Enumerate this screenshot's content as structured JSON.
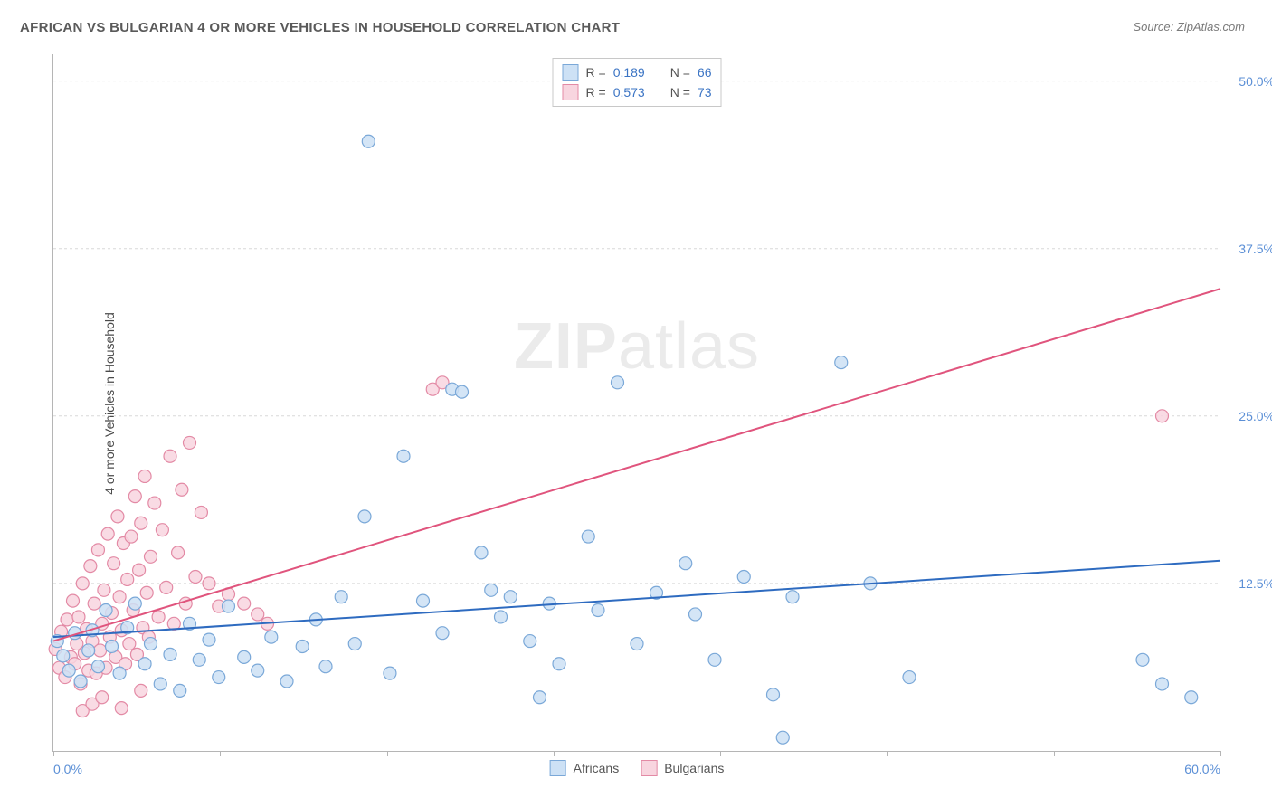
{
  "title": "AFRICAN VS BULGARIAN 4 OR MORE VEHICLES IN HOUSEHOLD CORRELATION CHART",
  "source": "Source: ZipAtlas.com",
  "y_axis_label": "4 or more Vehicles in Household",
  "watermark": {
    "bold": "ZIP",
    "rest": "atlas"
  },
  "chart": {
    "type": "scatter",
    "xlim": [
      0,
      60
    ],
    "ylim": [
      0,
      52
    ],
    "x_ticks_minor": [
      0,
      8.57,
      17.14,
      25.71,
      34.28,
      42.85,
      51.42,
      60
    ],
    "x_tick_labels": [
      {
        "value": 0,
        "label": "0.0%",
        "align": "left"
      },
      {
        "value": 60,
        "label": "60.0%",
        "align": "right"
      }
    ],
    "y_tick_labels": [
      {
        "value": 12.5,
        "label": "12.5%"
      },
      {
        "value": 25.0,
        "label": "25.0%"
      },
      {
        "value": 37.5,
        "label": "37.5%"
      },
      {
        "value": 50.0,
        "label": "50.0%"
      }
    ],
    "grid_color": "#d8d8d8",
    "background_color": "#ffffff",
    "marker_radius": 7,
    "marker_stroke_width": 1.2,
    "series": {
      "africans": {
        "label": "Africans",
        "fill": "#cde1f5",
        "stroke": "#7aa8d8",
        "line_color": "#2e6bc0",
        "line_width": 2,
        "R": "0.189",
        "N": "66",
        "regression": {
          "x1": 0,
          "y1": 8.5,
          "x2": 60,
          "y2": 14.2
        },
        "points": [
          [
            0.2,
            8.2
          ],
          [
            0.5,
            7.1
          ],
          [
            0.8,
            6.0
          ],
          [
            1.1,
            8.8
          ],
          [
            1.4,
            5.2
          ],
          [
            1.8,
            7.5
          ],
          [
            2.0,
            9.0
          ],
          [
            2.3,
            6.3
          ],
          [
            2.7,
            10.5
          ],
          [
            3.0,
            7.8
          ],
          [
            3.4,
            5.8
          ],
          [
            3.8,
            9.2
          ],
          [
            4.2,
            11.0
          ],
          [
            4.7,
            6.5
          ],
          [
            5.0,
            8.0
          ],
          [
            5.5,
            5.0
          ],
          [
            6.0,
            7.2
          ],
          [
            6.5,
            4.5
          ],
          [
            7.0,
            9.5
          ],
          [
            7.5,
            6.8
          ],
          [
            8.0,
            8.3
          ],
          [
            8.5,
            5.5
          ],
          [
            9.0,
            10.8
          ],
          [
            9.8,
            7.0
          ],
          [
            10.5,
            6.0
          ],
          [
            11.2,
            8.5
          ],
          [
            12.0,
            5.2
          ],
          [
            12.8,
            7.8
          ],
          [
            13.5,
            9.8
          ],
          [
            14.0,
            6.3
          ],
          [
            14.8,
            11.5
          ],
          [
            15.5,
            8.0
          ],
          [
            16.0,
            17.5
          ],
          [
            16.2,
            45.5
          ],
          [
            17.3,
            5.8
          ],
          [
            18.0,
            22.0
          ],
          [
            19.0,
            11.2
          ],
          [
            20.0,
            8.8
          ],
          [
            20.5,
            27.0
          ],
          [
            21.0,
            26.8
          ],
          [
            22.0,
            14.8
          ],
          [
            22.5,
            12.0
          ],
          [
            23.0,
            10.0
          ],
          [
            23.5,
            11.5
          ],
          [
            24.5,
            8.2
          ],
          [
            25.0,
            4.0
          ],
          [
            25.5,
            11.0
          ],
          [
            26.0,
            6.5
          ],
          [
            27.5,
            16.0
          ],
          [
            28.0,
            10.5
          ],
          [
            29.0,
            27.5
          ],
          [
            30.0,
            8.0
          ],
          [
            31.0,
            11.8
          ],
          [
            32.5,
            14.0
          ],
          [
            33.0,
            10.2
          ],
          [
            34.0,
            6.8
          ],
          [
            35.5,
            13.0
          ],
          [
            37.0,
            4.2
          ],
          [
            37.5,
            1.0
          ],
          [
            38.0,
            11.5
          ],
          [
            40.5,
            29.0
          ],
          [
            42.0,
            12.5
          ],
          [
            44.0,
            5.5
          ],
          [
            56.0,
            6.8
          ],
          [
            57.0,
            5.0
          ],
          [
            58.5,
            4.0
          ]
        ]
      },
      "bulgarians": {
        "label": "Bulgarians",
        "fill": "#f8d5df",
        "stroke": "#e38aa5",
        "line_color": "#e0547d",
        "line_width": 2,
        "R": "0.573",
        "N": "73",
        "regression": {
          "x1": 0,
          "y1": 8.2,
          "x2": 60,
          "y2": 34.5
        },
        "points": [
          [
            0.1,
            7.6
          ],
          [
            0.3,
            6.2
          ],
          [
            0.4,
            8.9
          ],
          [
            0.6,
            5.5
          ],
          [
            0.7,
            9.8
          ],
          [
            0.9,
            7.0
          ],
          [
            1.0,
            11.2
          ],
          [
            1.1,
            6.5
          ],
          [
            1.2,
            8.0
          ],
          [
            1.3,
            10.0
          ],
          [
            1.4,
            5.0
          ],
          [
            1.5,
            12.5
          ],
          [
            1.6,
            7.3
          ],
          [
            1.7,
            9.1
          ],
          [
            1.8,
            6.0
          ],
          [
            1.9,
            13.8
          ],
          [
            2.0,
            8.2
          ],
          [
            2.1,
            11.0
          ],
          [
            2.2,
            5.8
          ],
          [
            2.3,
            15.0
          ],
          [
            2.4,
            7.5
          ],
          [
            2.5,
            9.5
          ],
          [
            2.6,
            12.0
          ],
          [
            2.7,
            6.2
          ],
          [
            2.8,
            16.2
          ],
          [
            2.9,
            8.5
          ],
          [
            3.0,
            10.3
          ],
          [
            3.1,
            14.0
          ],
          [
            3.2,
            7.0
          ],
          [
            3.3,
            17.5
          ],
          [
            3.4,
            11.5
          ],
          [
            3.5,
            9.0
          ],
          [
            3.6,
            15.5
          ],
          [
            3.7,
            6.5
          ],
          [
            3.8,
            12.8
          ],
          [
            3.9,
            8.0
          ],
          [
            4.0,
            16.0
          ],
          [
            4.1,
            10.5
          ],
          [
            4.2,
            19.0
          ],
          [
            4.3,
            7.2
          ],
          [
            4.4,
            13.5
          ],
          [
            4.5,
            17.0
          ],
          [
            4.6,
            9.2
          ],
          [
            4.7,
            20.5
          ],
          [
            4.8,
            11.8
          ],
          [
            4.9,
            8.5
          ],
          [
            5.0,
            14.5
          ],
          [
            5.2,
            18.5
          ],
          [
            5.4,
            10.0
          ],
          [
            5.6,
            16.5
          ],
          [
            5.8,
            12.2
          ],
          [
            6.0,
            22.0
          ],
          [
            6.2,
            9.5
          ],
          [
            6.4,
            14.8
          ],
          [
            6.6,
            19.5
          ],
          [
            6.8,
            11.0
          ],
          [
            7.0,
            23.0
          ],
          [
            7.3,
            13.0
          ],
          [
            7.6,
            17.8
          ],
          [
            8.0,
            12.5
          ],
          [
            8.5,
            10.8
          ],
          [
            9.0,
            11.7
          ],
          [
            9.8,
            11.0
          ],
          [
            10.5,
            10.2
          ],
          [
            11.0,
            9.5
          ],
          [
            1.5,
            3.0
          ],
          [
            2.0,
            3.5
          ],
          [
            2.5,
            4.0
          ],
          [
            3.5,
            3.2
          ],
          [
            4.5,
            4.5
          ],
          [
            19.5,
            27.0
          ],
          [
            20.0,
            27.5
          ],
          [
            57.0,
            25.0
          ]
        ]
      }
    }
  },
  "stats_legend": {
    "r_label": "R  =",
    "n_label": "N  ="
  },
  "bottom_legend": {
    "items": [
      "africans",
      "bulgarians"
    ]
  }
}
